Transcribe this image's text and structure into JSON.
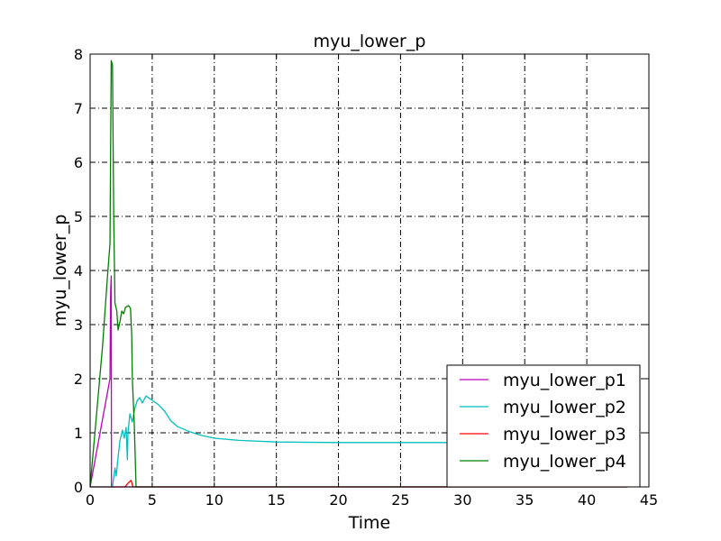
{
  "chart_data": {
    "type": "line",
    "title": "myu_lower_p",
    "xlabel": "Time",
    "ylabel": "myu_lower_p",
    "xlim": [
      0,
      45
    ],
    "ylim": [
      0,
      8
    ],
    "xticks": [
      0,
      5,
      10,
      15,
      20,
      25,
      30,
      35,
      40,
      45
    ],
    "yticks": [
      0,
      1,
      2,
      3,
      4,
      5,
      6,
      7,
      8
    ],
    "grid": true,
    "legend_position": "bottom-right",
    "series": [
      {
        "name": "myu_lower_p1",
        "color": "#bf00bf",
        "points": [
          [
            0,
            0
          ],
          [
            1.6,
            2.0
          ],
          [
            1.65,
            3.6
          ],
          [
            1.7,
            3.9
          ],
          [
            1.72,
            0
          ],
          [
            43.3,
            0
          ]
        ]
      },
      {
        "name": "myu_lower_p2",
        "color": "#00bfbf",
        "points": [
          [
            0,
            0
          ],
          [
            1.8,
            0
          ],
          [
            2.0,
            0.35
          ],
          [
            2.1,
            0.2
          ],
          [
            2.25,
            0.55
          ],
          [
            2.4,
            0.85
          ],
          [
            2.6,
            1.05
          ],
          [
            2.75,
            0.9
          ],
          [
            2.9,
            1.1
          ],
          [
            3.0,
            0.5
          ],
          [
            3.05,
            1.0
          ],
          [
            3.2,
            1.35
          ],
          [
            3.4,
            1.2
          ],
          [
            3.6,
            1.45
          ],
          [
            3.8,
            1.6
          ],
          [
            4.0,
            1.65
          ],
          [
            4.2,
            1.55
          ],
          [
            4.5,
            1.68
          ],
          [
            5.0,
            1.6
          ],
          [
            5.5,
            1.52
          ],
          [
            6.0,
            1.4
          ],
          [
            6.5,
            1.22
          ],
          [
            7.0,
            1.12
          ],
          [
            8.0,
            1.02
          ],
          [
            9.0,
            0.95
          ],
          [
            10.0,
            0.9
          ],
          [
            12.0,
            0.86
          ],
          [
            15.0,
            0.83
          ],
          [
            20.0,
            0.82
          ],
          [
            25.0,
            0.82
          ],
          [
            30.0,
            0.82
          ],
          [
            43.3,
            0.82
          ]
        ]
      },
      {
        "name": "myu_lower_p3",
        "color": "#ff0000",
        "points": [
          [
            0,
            0
          ],
          [
            2.8,
            0
          ],
          [
            3.1,
            0.08
          ],
          [
            3.3,
            0.12
          ],
          [
            3.45,
            0
          ],
          [
            43.3,
            0
          ]
        ]
      },
      {
        "name": "myu_lower_p4",
        "color": "#007f00",
        "points": [
          [
            0,
            0
          ],
          [
            0.5,
            1.3
          ],
          [
            1.0,
            2.6
          ],
          [
            1.4,
            3.9
          ],
          [
            1.6,
            4.5
          ],
          [
            1.7,
            7.88
          ],
          [
            1.8,
            7.8
          ],
          [
            1.9,
            5.0
          ],
          [
            2.0,
            3.4
          ],
          [
            2.15,
            3.25
          ],
          [
            2.25,
            2.9
          ],
          [
            2.4,
            3.05
          ],
          [
            2.55,
            3.25
          ],
          [
            2.7,
            3.2
          ],
          [
            2.85,
            3.32
          ],
          [
            3.1,
            3.35
          ],
          [
            3.25,
            3.3
          ],
          [
            3.35,
            2.8
          ],
          [
            3.4,
            2.0
          ],
          [
            3.55,
            1.2
          ],
          [
            3.7,
            0
          ],
          [
            43.3,
            0
          ]
        ]
      }
    ]
  }
}
